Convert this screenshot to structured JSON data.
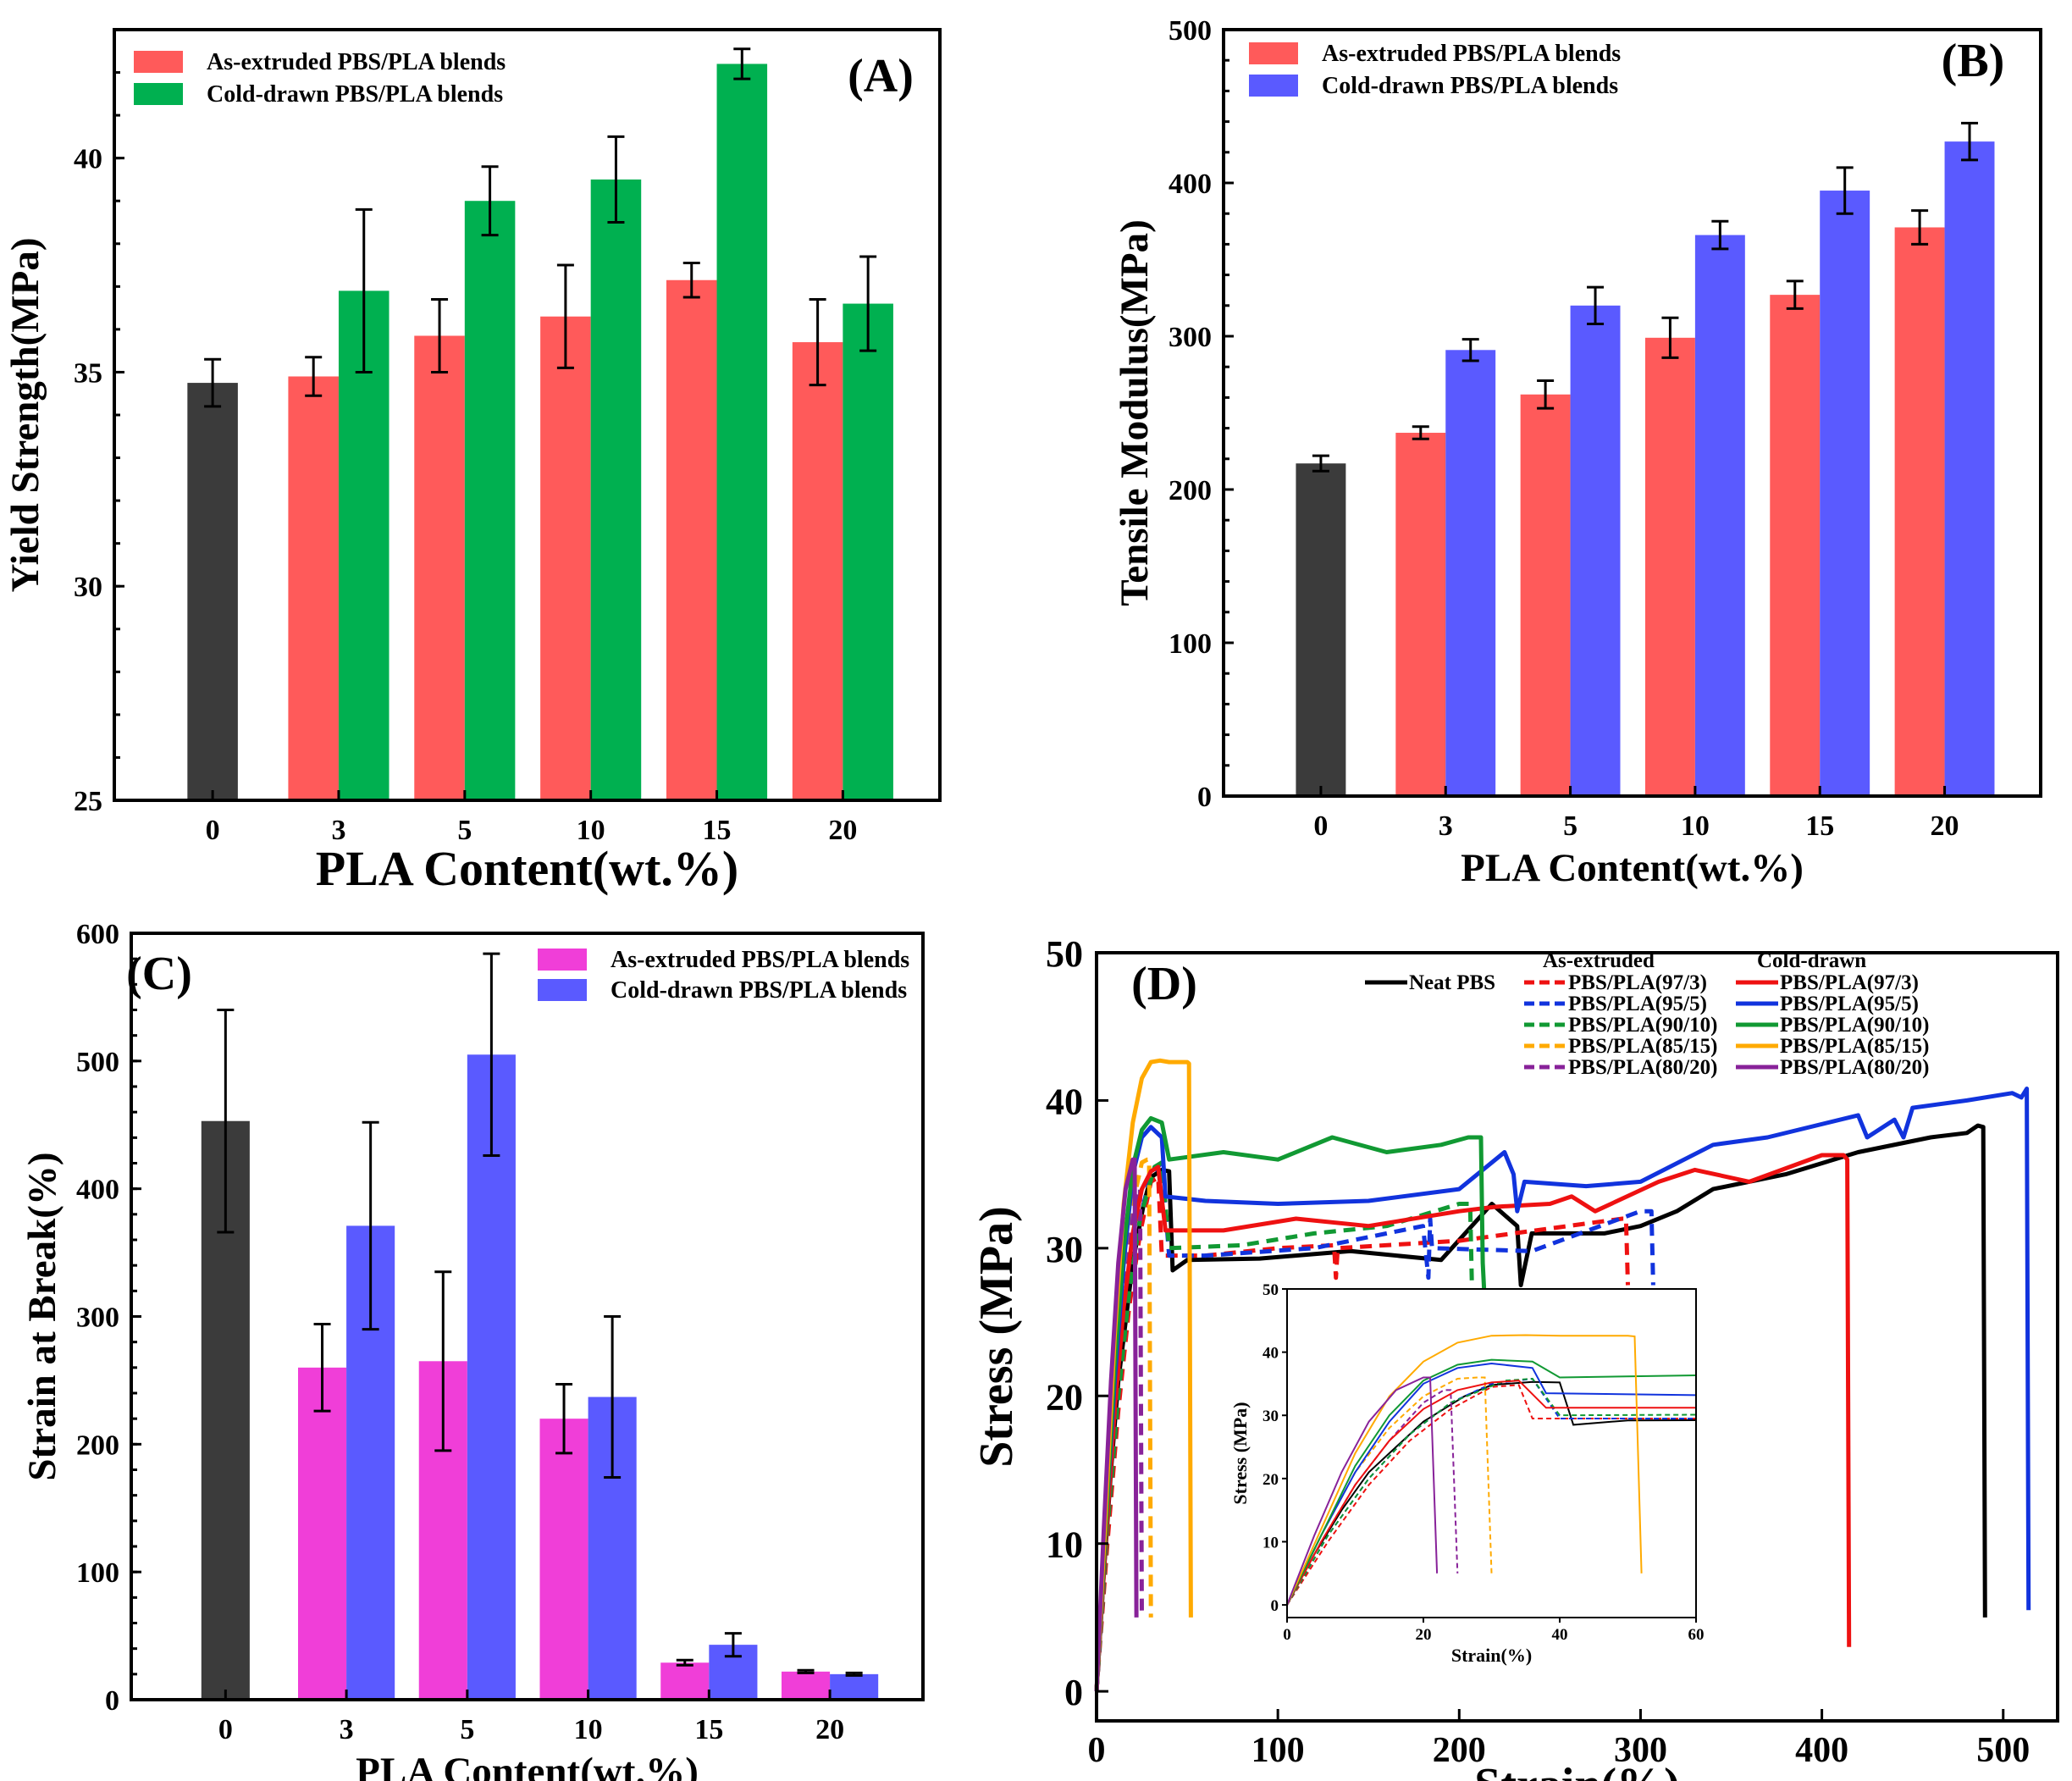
{
  "colors": {
    "neat": "#3b3b3b",
    "as_extruded_red": "#ff5a5a",
    "cold_drawn_green": "#00b050",
    "cold_drawn_blue": "#5a5aff",
    "as_extruded_magenta": "#f03ed8",
    "curve_black": "#000000",
    "curve_red": "#ee1111",
    "curve_blue": "#1133dd",
    "curve_green": "#119933",
    "curve_orange": "#ffaa00",
    "curve_purple": "#882299"
  },
  "chart_data": [
    {
      "panel": "(A)",
      "type": "bar",
      "xlabel": "PLA Content(wt.%)",
      "ylabel": "Yield Strength(MPa)",
      "ylim": [
        25,
        43
      ],
      "yticks": [
        25,
        30,
        35,
        40
      ],
      "categories": [
        "0",
        "3",
        "5",
        "10",
        "15",
        "20"
      ],
      "legend_position": "top-left",
      "series": [
        {
          "name": "Neat PBS",
          "color_key": "neat",
          "in_legend": false,
          "values": [
            34.75,
            null,
            null,
            null,
            null,
            null
          ],
          "errors": [
            0.55,
            null,
            null,
            null,
            null,
            null
          ]
        },
        {
          "name": "As-extruded PBS/PLA blends",
          "color_key": "as_extruded_red",
          "in_legend": true,
          "values": [
            null,
            34.9,
            35.85,
            36.3,
            37.15,
            35.7
          ],
          "errors": [
            null,
            0.45,
            0.85,
            1.2,
            0.4,
            1.0
          ]
        },
        {
          "name": "Cold-drawn PBS/PLA blends",
          "color_key": "cold_drawn_green",
          "in_legend": true,
          "values": [
            null,
            36.9,
            39.0,
            39.5,
            42.2,
            36.6
          ],
          "errors": [
            null,
            1.9,
            0.8,
            1.0,
            0.35,
            1.1
          ]
        }
      ]
    },
    {
      "panel": "(B)",
      "type": "bar",
      "xlabel": "PLA Content(wt.%)",
      "ylabel": "Tensile Modulus(MPa)",
      "ylim": [
        0,
        500
      ],
      "yticks": [
        0,
        100,
        200,
        300,
        400,
        500
      ],
      "categories": [
        "0",
        "3",
        "5",
        "10",
        "15",
        "20"
      ],
      "legend_position": "top-left",
      "series": [
        {
          "name": "Neat PBS",
          "color_key": "neat",
          "in_legend": false,
          "values": [
            217,
            null,
            null,
            null,
            null,
            null
          ],
          "errors": [
            5,
            null,
            null,
            null,
            null,
            null
          ]
        },
        {
          "name": "As-extruded PBS/PLA blends",
          "color_key": "as_extruded_red",
          "in_legend": true,
          "values": [
            null,
            237,
            262,
            299,
            327,
            371
          ],
          "errors": [
            null,
            4,
            9,
            13,
            9,
            11
          ]
        },
        {
          "name": "Cold-drawn PBS/PLA blends",
          "color_key": "cold_drawn_blue",
          "in_legend": true,
          "values": [
            null,
            291,
            320,
            366,
            395,
            427
          ],
          "errors": [
            null,
            7,
            12,
            9,
            15,
            12
          ]
        }
      ]
    },
    {
      "panel": "(C)",
      "type": "bar",
      "xlabel": "PLA Content(wt.%)",
      "ylabel": "Strain at Break(%)",
      "ylim": [
        0,
        600
      ],
      "yticks": [
        0,
        100,
        200,
        300,
        400,
        500,
        600
      ],
      "categories": [
        "0",
        "3",
        "5",
        "10",
        "15",
        "20"
      ],
      "legend_position": "top-right",
      "series": [
        {
          "name": "Neat PBS",
          "color_key": "neat",
          "in_legend": false,
          "values": [
            453,
            null,
            null,
            null,
            null,
            null
          ],
          "errors": [
            87,
            null,
            null,
            null,
            null,
            null
          ]
        },
        {
          "name": "As-extruded PBS/PLA blends",
          "color_key": "as_extruded_magenta",
          "in_legend": true,
          "values": [
            null,
            260,
            265,
            220,
            29,
            22
          ],
          "errors": [
            null,
            34,
            70,
            27,
            2,
            1
          ]
        },
        {
          "name": "Cold-drawn PBS/PLA blends",
          "color_key": "cold_drawn_blue",
          "in_legend": true,
          "values": [
            null,
            371,
            505,
            237,
            43,
            20
          ],
          "errors": [
            null,
            81,
            79,
            63,
            9,
            1
          ]
        }
      ]
    },
    {
      "panel": "(D)",
      "type": "line",
      "xlabel": "Strain(%)",
      "ylabel": "Stress (MPa)",
      "xlim": [
        0,
        530
      ],
      "ylim": [
        -2,
        50
      ],
      "xticks": [
        0,
        100,
        200,
        300,
        400,
        500
      ],
      "yticks": [
        0,
        10,
        20,
        30,
        40,
        50
      ],
      "legend_position": "top",
      "legend_headers": {
        "as_extruded": "As-extruded",
        "cold_drawn": "Cold-drawn"
      },
      "series": [
        {
          "name": "Neat PBS",
          "group": "neat",
          "color_key": "curve_black",
          "dashed": false,
          "x": [
            0,
            4,
            8,
            12,
            16,
            20,
            26,
            30,
            36,
            40,
            42,
            50,
            90,
            140,
            190,
            218,
            232,
            234,
            240,
            280,
            300,
            320,
            340,
            380,
            420,
            460,
            480,
            486,
            489,
            490
          ],
          "y": [
            0,
            8,
            15,
            21,
            25,
            29,
            33,
            34.8,
            35.3,
            35.2,
            28.5,
            29.2,
            29.3,
            29.8,
            29.2,
            33,
            31.5,
            27.5,
            31,
            31,
            31.5,
            32.5,
            34,
            35,
            36.5,
            37.5,
            37.8,
            38.3,
            38.2,
            5
          ]
        },
        {
          "name": "PBS/PLA(97/3)",
          "group": "as_extruded",
          "color_key": "curve_red",
          "dashed": true,
          "x": [
            0,
            6,
            12,
            18,
            24,
            30,
            34,
            36,
            60,
            100,
            131,
            132,
            133,
            200,
            260,
            290,
            292,
            293
          ],
          "y": [
            0,
            10,
            19,
            26,
            31,
            34.5,
            34.8,
            29.5,
            29.5,
            30,
            30.2,
            28,
            30,
            30.5,
            31.5,
            32,
            32,
            27.5
          ]
        },
        {
          "name": "PBS/PLA(95/5)",
          "group": "as_extruded",
          "color_key": "curve_blue",
          "dashed": true,
          "x": [
            0,
            6,
            12,
            18,
            24,
            30,
            36,
            40,
            60,
            120,
            180,
            183,
            184,
            185,
            240,
            300,
            306,
            307
          ],
          "y": [
            0,
            11,
            20,
            27,
            32,
            35,
            35.8,
            29.5,
            29.5,
            30,
            31.5,
            28,
            32,
            30,
            29.8,
            32.5,
            32.5,
            27.5
          ]
        },
        {
          "name": "PBS/PLA(90/10)",
          "group": "as_extruded",
          "color_key": "curve_green",
          "dashed": true,
          "x": [
            0,
            6,
            12,
            18,
            24,
            32,
            36,
            40,
            80,
            120,
            160,
            200,
            206,
            207
          ],
          "y": [
            0,
            11,
            20,
            27,
            32,
            35.5,
            35.8,
            30,
            30.2,
            31,
            31.5,
            33,
            33,
            27.5
          ]
        },
        {
          "name": "PBS/PLA(85/15)",
          "group": "as_extruded",
          "color_key": "curve_orange",
          "dashed": true,
          "x": [
            0,
            5,
            10,
            15,
            20,
            25,
            28,
            29,
            30
          ],
          "y": [
            0,
            11,
            21,
            28,
            33,
            35.8,
            36,
            36,
            5
          ]
        },
        {
          "name": "PBS/PLA(80/20)",
          "group": "as_extruded",
          "color_key": "curve_purple",
          "dashed": true,
          "x": [
            0,
            5,
            10,
            15,
            20,
            23,
            24,
            25
          ],
          "y": [
            0,
            10,
            19,
            26,
            32,
            34,
            34,
            5
          ]
        },
        {
          "name": "PBS/PLA(97/3)",
          "group": "cold_drawn",
          "color_key": "curve_red",
          "dashed": false,
          "x": [
            0,
            5,
            10,
            15,
            20,
            25,
            30,
            34,
            38,
            70,
            110,
            150,
            200,
            220,
            250,
            262,
            275,
            310,
            330,
            360,
            400,
            412,
            414,
            415
          ],
          "y": [
            0,
            10,
            19,
            26,
            31,
            34,
            35.2,
            35.5,
            31.2,
            31.2,
            32,
            31.5,
            32.5,
            32.8,
            33,
            33.5,
            32.5,
            34.5,
            35.3,
            34.5,
            36.3,
            36.3,
            36,
            3
          ]
        },
        {
          "name": "PBS/PLA(95/5)",
          "group": "cold_drawn",
          "color_key": "curve_blue",
          "dashed": false,
          "x": [
            0,
            5,
            10,
            15,
            20,
            25,
            30,
            36,
            38,
            60,
            100,
            150,
            200,
            225,
            230,
            232,
            236,
            270,
            300,
            340,
            370,
            420,
            425,
            440,
            445,
            450,
            480,
            505,
            510,
            513,
            514
          ],
          "y": [
            0,
            11,
            21,
            29,
            35,
            37.5,
            38.2,
            37.5,
            33.5,
            33.2,
            33,
            33.2,
            34,
            36.5,
            35,
            32.5,
            34.5,
            34.2,
            34.5,
            37,
            37.5,
            39,
            37.5,
            38.7,
            37.5,
            39.5,
            40,
            40.5,
            40.2,
            40.8,
            5.5
          ]
        },
        {
          "name": "PBS/PLA(90/10)",
          "group": "cold_drawn",
          "color_key": "curve_green",
          "dashed": false,
          "x": [
            0,
            5,
            10,
            15,
            20,
            25,
            30,
            36,
            40,
            70,
            100,
            130,
            160,
            190,
            205,
            212,
            213,
            214
          ],
          "y": [
            0,
            11,
            22,
            30,
            35.5,
            38,
            38.8,
            38.5,
            36,
            36.5,
            36,
            37.5,
            36.5,
            37,
            37.5,
            37.5,
            29,
            26.5
          ]
        },
        {
          "name": "PBS/PLA(85/15)",
          "group": "cold_drawn",
          "color_key": "curve_orange",
          "dashed": false,
          "x": [
            0,
            5,
            10,
            15,
            20,
            25,
            30,
            35,
            40,
            45,
            50,
            51,
            52
          ],
          "y": [
            0,
            12,
            24,
            33,
            38.5,
            41.5,
            42.6,
            42.7,
            42.6,
            42.6,
            42.6,
            42.5,
            5
          ]
        },
        {
          "name": "PBS/PLA(80/20)",
          "group": "cold_drawn",
          "color_key": "curve_purple",
          "dashed": false,
          "x": [
            0,
            4,
            8,
            12,
            16,
            20,
            21,
            22
          ],
          "y": [
            0,
            11,
            21,
            29,
            34,
            36,
            36,
            5
          ]
        }
      ],
      "inset": {
        "xlabel": "Strain(%)",
        "ylabel": "Stress (MPa)",
        "xlim": [
          0,
          60
        ],
        "ylim": [
          -2,
          50
        ],
        "xticks": [
          0,
          20,
          40,
          60
        ],
        "yticks": [
          0,
          10,
          20,
          30,
          40,
          50
        ]
      }
    }
  ]
}
